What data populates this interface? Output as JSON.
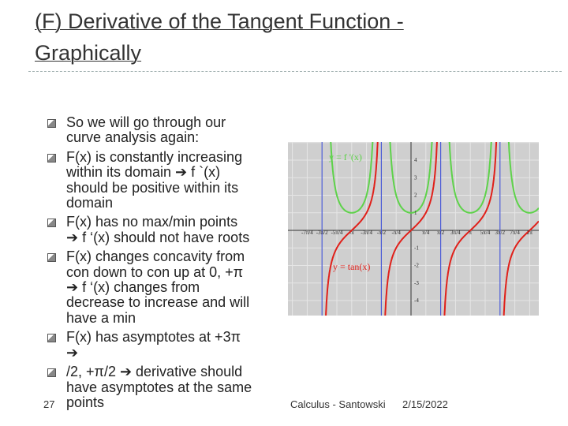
{
  "header": {
    "title_lines": [
      "(F) Derivative of the Tangent Function -",
      "Graphically"
    ]
  },
  "bullets": [
    [
      "So we will go through our",
      "curve analysis again:"
    ],
    [
      "F(x) is constantly increasing",
      "within its domain ➔ f `(x)",
      "should be positive within its",
      "domain"
    ],
    [
      "F(x) has no max/min points",
      "➔ f ‘(x) should not have roots"
    ],
    [
      "F(x) changes concavity from",
      "con down to con up at 0, +π",
      "➔ f ‘(x) changes from",
      "decrease to increase and will",
      "have a min"
    ],
    [
      "F(x) has asymptotes at +3π",
      "➔"
    ],
    [
      "/2, +π/2 ➔ derivative should",
      "have asymptotes at the same",
      "points"
    ]
  ],
  "figure": {
    "derivative_label": "y = f '(x)",
    "tan_label": "y = tan(x)",
    "x_ticks": [
      "-7π/4",
      "-3π/2",
      "-5π/4",
      "-π",
      "-3π/4",
      "-π/2",
      "-π/4",
      "π/4",
      "π/2",
      "3π/4",
      "π",
      "5π/4",
      "3π/2",
      "7π/4",
      "2π"
    ],
    "y_ticks": [
      "4",
      "3",
      "2",
      "1",
      "-1",
      "-2",
      "-3",
      "-4"
    ]
  },
  "footer": {
    "slide_number": "27",
    "author": "Calculus - Santowski",
    "date": "2/15/2022"
  }
}
